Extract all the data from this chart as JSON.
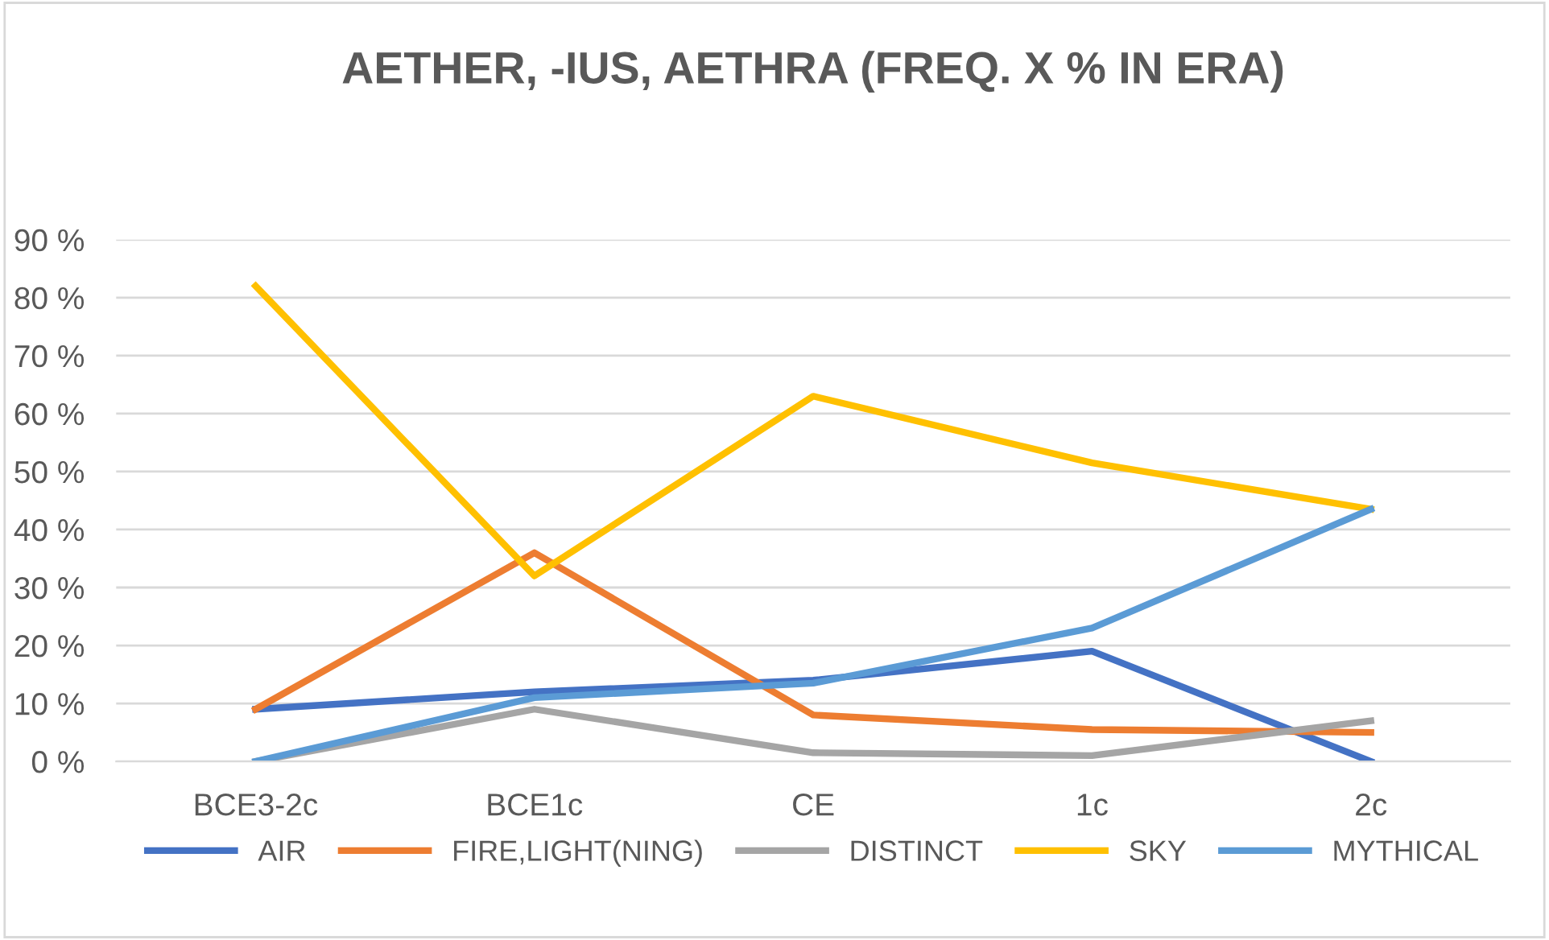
{
  "chart_data": {
    "type": "line",
    "title": "AETHER, -IUS, AETHRA (FREQ. X % IN ERA)",
    "categories": [
      "BCE3-2c",
      "BCE1c",
      "CE",
      "1c",
      "2c"
    ],
    "series": [
      {
        "name": "AIR",
        "color": "#4472c4",
        "values": [
          9,
          12,
          14,
          19,
          0
        ]
      },
      {
        "name": "FIRE,LIGHT(NING)",
        "color": "#ed7d31",
        "values": [
          9,
          36,
          8,
          5.5,
          5
        ]
      },
      {
        "name": "DISTINCT",
        "color": "#a5a5a5",
        "values": [
          0,
          9,
          1.5,
          1,
          7
        ]
      },
      {
        "name": "SKY",
        "color": "#ffc000",
        "values": [
          82,
          32,
          63,
          51.5,
          43.5
        ]
      },
      {
        "name": "MYTHICAL",
        "color": "#5b9bd5",
        "values": [
          0,
          11,
          13.5,
          23,
          43.5
        ]
      }
    ],
    "ylim": [
      0,
      90
    ],
    "yticks": [
      {
        "value": 0,
        "label": "0 %"
      },
      {
        "value": 10,
        "label": "10 %"
      },
      {
        "value": 20,
        "label": "20 %"
      },
      {
        "value": 30,
        "label": "30 %"
      },
      {
        "value": 40,
        "label": "40 %"
      },
      {
        "value": 50,
        "label": "50 %"
      },
      {
        "value": 60,
        "label": "60 %"
      },
      {
        "value": 70,
        "label": "70 %"
      },
      {
        "value": 80,
        "label": "80 %"
      },
      {
        "value": 90,
        "label": "90 %"
      }
    ],
    "grid": "y",
    "legend": "bottom",
    "marker": "none",
    "line_style": "solid"
  }
}
